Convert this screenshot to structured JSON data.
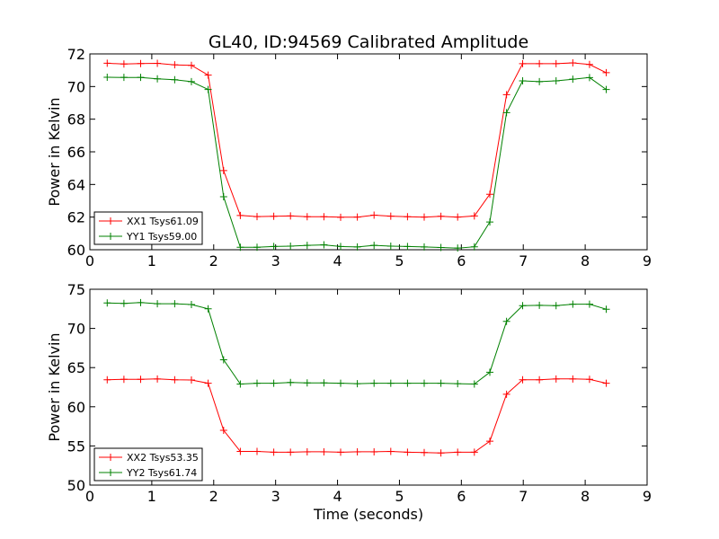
{
  "title": "GL40, ID:94569 Calibrated Amplitude",
  "colors": {
    "red": "#ff0000",
    "green": "#008000"
  },
  "chart_data": [
    {
      "type": "line",
      "xlabel": "",
      "ylabel": "Power in Kelvin",
      "xlim": [
        0,
        9
      ],
      "ylim": [
        60,
        72
      ],
      "xticks": [
        "0",
        "1",
        "2",
        "3",
        "4",
        "5",
        "6",
        "7",
        "8",
        "9"
      ],
      "yticks": [
        "60",
        "62",
        "64",
        "66",
        "68",
        "70",
        "72"
      ],
      "grid": false,
      "legend_position": "lower-left",
      "marker": "+",
      "x": [
        0.28,
        0.55,
        0.82,
        1.09,
        1.37,
        1.64,
        1.91,
        2.16,
        2.43,
        2.7,
        2.97,
        3.24,
        3.51,
        3.78,
        4.05,
        4.32,
        4.59,
        4.86,
        5.13,
        5.4,
        5.67,
        5.94,
        6.21,
        6.46,
        6.73,
        6.99,
        7.26,
        7.53,
        7.8,
        8.07,
        8.34
      ],
      "series": [
        {
          "name": "XX1 Tsys61.09",
          "color": "#ff0000",
          "values": [
            71.43,
            71.38,
            71.41,
            71.42,
            71.33,
            71.3,
            70.7,
            64.85,
            62.1,
            62.03,
            62.05,
            62.07,
            62.02,
            62.02,
            61.99,
            62.0,
            62.12,
            62.06,
            62.02,
            62.0,
            62.05,
            62.0,
            62.07,
            63.4,
            69.5,
            71.4,
            71.4,
            71.4,
            71.45,
            71.35,
            70.85
          ]
        },
        {
          "name": "YY1 Tsys59.00",
          "color": "#008000",
          "values": [
            70.57,
            70.56,
            70.56,
            70.47,
            70.42,
            70.3,
            69.82,
            63.25,
            60.15,
            60.15,
            60.2,
            60.22,
            60.27,
            60.3,
            60.2,
            60.17,
            60.27,
            60.22,
            60.2,
            60.17,
            60.14,
            60.1,
            60.18,
            61.7,
            68.4,
            70.35,
            70.3,
            70.35,
            70.45,
            70.55,
            69.82
          ]
        }
      ]
    },
    {
      "type": "line",
      "xlabel": "Time (seconds)",
      "ylabel": "Power in Kelvin",
      "xlim": [
        0,
        9
      ],
      "ylim": [
        50,
        75
      ],
      "xticks": [
        "0",
        "1",
        "2",
        "3",
        "4",
        "5",
        "6",
        "7",
        "8",
        "9"
      ],
      "yticks": [
        "50",
        "55",
        "60",
        "65",
        "70",
        "75"
      ],
      "grid": false,
      "legend_position": "lower-left",
      "marker": "+",
      "x": [
        0.28,
        0.55,
        0.82,
        1.09,
        1.37,
        1.64,
        1.91,
        2.16,
        2.43,
        2.7,
        2.97,
        3.24,
        3.51,
        3.78,
        4.05,
        4.32,
        4.59,
        4.86,
        5.13,
        5.4,
        5.67,
        5.94,
        6.21,
        6.46,
        6.73,
        6.99,
        7.26,
        7.53,
        7.8,
        8.07,
        8.34
      ],
      "series": [
        {
          "name": "XX2 Tsys53.35",
          "color": "#ff0000",
          "values": [
            63.45,
            63.5,
            63.5,
            63.55,
            63.45,
            63.42,
            63.0,
            57.0,
            54.3,
            54.3,
            54.2,
            54.2,
            54.25,
            54.25,
            54.2,
            54.25,
            54.25,
            54.3,
            54.2,
            54.15,
            54.1,
            54.2,
            54.2,
            55.6,
            61.6,
            63.45,
            63.45,
            63.55,
            63.55,
            63.5,
            63.0
          ]
        },
        {
          "name": "YY2 Tsys61.74",
          "color": "#008000",
          "values": [
            73.25,
            73.2,
            73.3,
            73.15,
            73.15,
            73.05,
            72.5,
            66.0,
            62.9,
            63.0,
            63.0,
            63.1,
            63.05,
            63.05,
            63.0,
            62.95,
            63.0,
            63.0,
            63.0,
            63.0,
            63.0,
            62.95,
            62.9,
            64.4,
            70.9,
            72.9,
            72.95,
            72.9,
            73.1,
            73.1,
            72.45
          ]
        }
      ]
    }
  ]
}
